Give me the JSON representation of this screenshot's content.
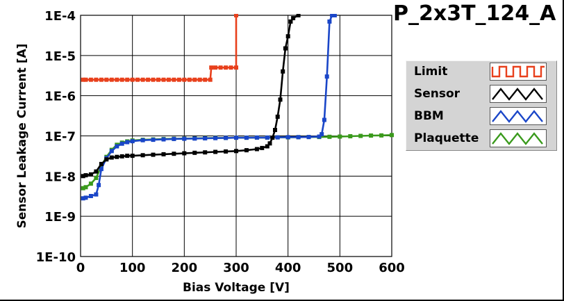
{
  "chart_data": {
    "type": "line",
    "title": "P_2x3T_124_A",
    "xlabel": "Bias Voltage [V]",
    "ylabel": "Sensor Leakage Current [A]",
    "xlim": [
      0,
      600
    ],
    "ylim": [
      1e-10,
      0.0001
    ],
    "yscale": "log",
    "grid": true,
    "legend_position": "right",
    "x_ticks": [
      {
        "value": 0,
        "label": "0"
      },
      {
        "value": 100,
        "label": "100"
      },
      {
        "value": 200,
        "label": "200"
      },
      {
        "value": 300,
        "label": "300"
      },
      {
        "value": 400,
        "label": "400"
      },
      {
        "value": 500,
        "label": "500"
      },
      {
        "value": 600,
        "label": "600"
      }
    ],
    "y_ticks": [
      {
        "value": 1e-10,
        "label": "1E-10"
      },
      {
        "value": 1e-09,
        "label": "1E-9"
      },
      {
        "value": 1e-08,
        "label": "1E-8"
      },
      {
        "value": 1e-07,
        "label": "1E-7"
      },
      {
        "value": 1e-06,
        "label": "1E-6"
      },
      {
        "value": 1e-05,
        "label": "1E-5"
      },
      {
        "value": 0.0001,
        "label": "1E-4"
      }
    ],
    "series": [
      {
        "name": "Limit",
        "color": "#e8401c",
        "x": [
          5,
          10,
          20,
          30,
          40,
          50,
          60,
          70,
          80,
          90,
          100,
          110,
          120,
          130,
          140,
          150,
          160,
          170,
          180,
          190,
          200,
          210,
          220,
          230,
          240,
          250,
          252,
          260,
          270,
          280,
          290,
          300,
          300
        ],
        "y": [
          2.5e-06,
          2.5e-06,
          2.5e-06,
          2.5e-06,
          2.5e-06,
          2.5e-06,
          2.5e-06,
          2.5e-06,
          2.5e-06,
          2.5e-06,
          2.5e-06,
          2.5e-06,
          2.5e-06,
          2.5e-06,
          2.5e-06,
          2.5e-06,
          2.5e-06,
          2.5e-06,
          2.5e-06,
          2.5e-06,
          2.5e-06,
          2.5e-06,
          2.5e-06,
          2.5e-06,
          2.5e-06,
          2.5e-06,
          5e-06,
          5e-06,
          5e-06,
          5e-06,
          5e-06,
          5e-06,
          0.0001
        ]
      },
      {
        "name": "Sensor",
        "color": "#000000",
        "x": [
          5,
          10,
          20,
          30,
          40,
          50,
          60,
          70,
          80,
          90,
          100,
          120,
          140,
          160,
          180,
          200,
          220,
          240,
          260,
          280,
          300,
          320,
          340,
          350,
          360,
          365,
          370,
          375,
          380,
          385,
          390,
          395,
          400,
          405,
          410,
          420
        ],
        "y": [
          1e-08,
          1.05e-08,
          1.1e-08,
          1.3e-08,
          2e-08,
          2.6e-08,
          2.9e-08,
          3e-08,
          3.1e-08,
          3.2e-08,
          3.2e-08,
          3.3e-08,
          3.4e-08,
          3.5e-08,
          3.6e-08,
          3.7e-08,
          3.8e-08,
          3.9e-08,
          4e-08,
          4.1e-08,
          4.2e-08,
          4.4e-08,
          4.7e-08,
          5e-08,
          5.5e-08,
          6.5e-08,
          9e-08,
          1.4e-07,
          3e-07,
          8e-07,
          4e-06,
          1.5e-05,
          3e-05,
          7e-05,
          8.5e-05,
          0.0001
        ]
      },
      {
        "name": "BBM",
        "color": "#1a46c8",
        "x": [
          5,
          10,
          20,
          30,
          35,
          40,
          50,
          60,
          70,
          80,
          90,
          100,
          120,
          140,
          160,
          180,
          200,
          220,
          240,
          260,
          280,
          300,
          320,
          340,
          360,
          380,
          400,
          420,
          440,
          460,
          465,
          470,
          475,
          480,
          485,
          490
        ],
        "y": [
          2.8e-09,
          2.9e-09,
          3.2e-09,
          3.5e-09,
          6e-09,
          1.5e-08,
          2.8e-08,
          4.2e-08,
          5.5e-08,
          6.4e-08,
          7e-08,
          7.4e-08,
          7.8e-08,
          8e-08,
          8.2e-08,
          8.4e-08,
          8.5e-08,
          8.6e-08,
          8.7e-08,
          8.8e-08,
          8.9e-08,
          9e-08,
          9e-08,
          9.1e-08,
          9.1e-08,
          9.2e-08,
          9.3e-08,
          9.3e-08,
          9.4e-08,
          9.6e-08,
          1.1e-07,
          2.5e-07,
          3e-06,
          7e-05,
          0.0001,
          0.0001
        ]
      },
      {
        "name": "Plaquette",
        "color": "#3a9a1c",
        "x": [
          5,
          10,
          20,
          30,
          40,
          50,
          60,
          70,
          80,
          90,
          100,
          120,
          140,
          160,
          180,
          200,
          220,
          240,
          260,
          280,
          300,
          320,
          340,
          360,
          380,
          400,
          420,
          440,
          460,
          480,
          500,
          520,
          540,
          560,
          580,
          600
        ],
        "y": [
          5e-09,
          5.3e-09,
          6.5e-09,
          9e-09,
          1.8e-08,
          3e-08,
          4.5e-08,
          6e-08,
          6.8e-08,
          7.3e-08,
          7.7e-08,
          8e-08,
          8.2e-08,
          8.4e-08,
          8.5e-08,
          8.6e-08,
          8.7e-08,
          8.8e-08,
          8.9e-08,
          8.9e-08,
          9e-08,
          9e-08,
          9.1e-08,
          9.1e-08,
          9.2e-08,
          9.2e-08,
          9.3e-08,
          9.4e-08,
          9.4e-08,
          9.5e-08,
          9.6e-08,
          9.8e-08,
          1e-07,
          1.02e-07,
          1.03e-07,
          1.05e-07
        ]
      }
    ]
  }
}
